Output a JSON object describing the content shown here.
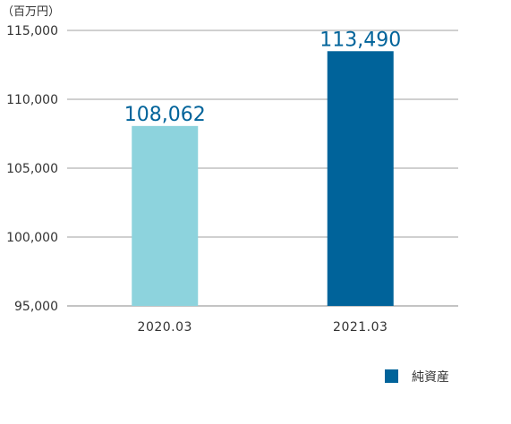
{
  "chart_data": {
    "type": "bar",
    "ylabel": "（百万円）",
    "categories": [
      "2020.03",
      "2021.03"
    ],
    "series": [
      {
        "name": "純資産",
        "values": [
          108062,
          113490
        ]
      }
    ],
    "value_labels": [
      "108,062",
      "113,490"
    ],
    "bar_colors": [
      "#8dd3dd",
      "#00639a"
    ],
    "legend_color": "#00639a",
    "ylim": [
      95000,
      115000
    ],
    "yticks": [
      95000,
      100000,
      105000,
      110000,
      115000
    ],
    "ytick_labels": [
      "95,000",
      "100,000",
      "105,000",
      "110,000",
      "115,000"
    ],
    "grid": true,
    "legend_position": "bottom-right"
  }
}
